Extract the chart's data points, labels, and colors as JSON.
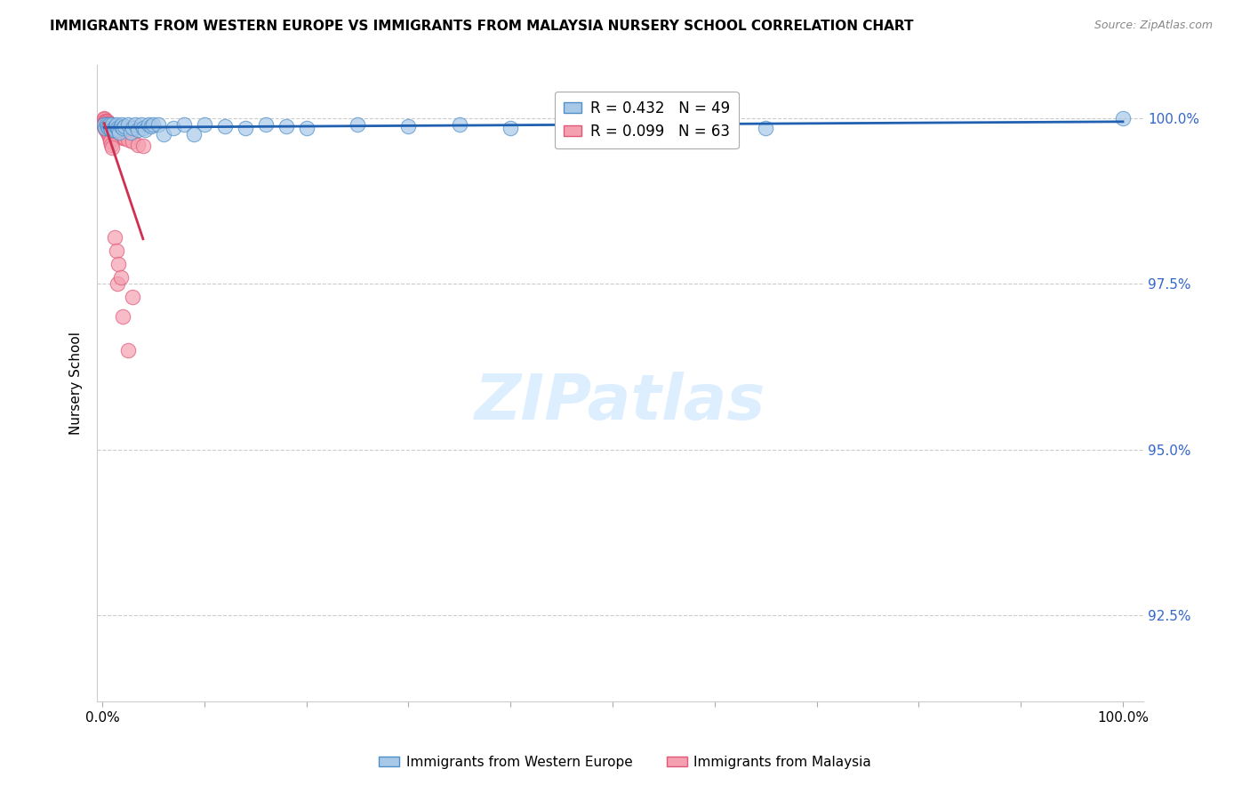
{
  "title": "IMMIGRANTS FROM WESTERN EUROPE VS IMMIGRANTS FROM MALAYSIA NURSERY SCHOOL CORRELATION CHART",
  "source": "Source: ZipAtlas.com",
  "ylabel": "Nursery School",
  "y_tick_labels": [
    "92.5%",
    "95.0%",
    "97.5%",
    "100.0%"
  ],
  "y_ticks": [
    0.925,
    0.95,
    0.975,
    1.0
  ],
  "y_min": 0.912,
  "y_max": 1.008,
  "x_min": -0.005,
  "x_max": 1.02,
  "blue_R": 0.432,
  "blue_N": 49,
  "pink_R": 0.099,
  "pink_N": 63,
  "blue_color": "#a8c8e8",
  "pink_color": "#f4a0b0",
  "blue_edge_color": "#5090c8",
  "pink_edge_color": "#e05878",
  "blue_line_color": "#2060b0",
  "pink_line_color": "#d03050",
  "watermark_color": "#ddeeff",
  "legend_label_blue": "Immigrants from Western Europe",
  "legend_label_pink": "Immigrants from Malaysia",
  "blue_scatter_x": [
    0.002,
    0.003,
    0.004,
    0.005,
    0.006,
    0.007,
    0.008,
    0.009,
    0.01,
    0.011,
    0.012,
    0.013,
    0.014,
    0.015,
    0.016,
    0.017,
    0.018,
    0.019,
    0.02,
    0.022,
    0.025,
    0.028,
    0.03,
    0.032,
    0.035,
    0.038,
    0.04,
    0.042,
    0.045,
    0.048,
    0.05,
    0.055,
    0.06,
    0.07,
    0.08,
    0.09,
    0.1,
    0.12,
    0.14,
    0.16,
    0.18,
    0.2,
    0.25,
    0.3,
    0.35,
    0.4,
    0.5,
    0.65,
    1.0
  ],
  "blue_scatter_y": [
    0.999,
    0.9985,
    0.999,
    0.9988,
    0.9985,
    0.999,
    0.9985,
    0.9982,
    0.999,
    0.9985,
    0.9982,
    0.9988,
    0.999,
    0.9985,
    0.9982,
    0.9978,
    0.9988,
    0.999,
    0.9985,
    0.9988,
    0.999,
    0.9978,
    0.9985,
    0.999,
    0.9982,
    0.999,
    0.9985,
    0.9982,
    0.999,
    0.9988,
    0.999,
    0.999,
    0.9975,
    0.9985,
    0.999,
    0.9975,
    0.999,
    0.9988,
    0.9985,
    0.999,
    0.9988,
    0.9985,
    0.999,
    0.9988,
    0.999,
    0.9985,
    0.999,
    0.9985,
    1.0
  ],
  "pink_scatter_x": [
    0.002,
    0.002,
    0.003,
    0.003,
    0.003,
    0.004,
    0.004,
    0.004,
    0.005,
    0.005,
    0.005,
    0.006,
    0.006,
    0.006,
    0.007,
    0.007,
    0.007,
    0.008,
    0.008,
    0.008,
    0.009,
    0.009,
    0.01,
    0.01,
    0.01,
    0.011,
    0.011,
    0.012,
    0.012,
    0.013,
    0.014,
    0.015,
    0.016,
    0.018,
    0.02,
    0.022,
    0.025,
    0.03,
    0.035,
    0.04,
    0.002,
    0.002,
    0.003,
    0.003,
    0.004,
    0.004,
    0.005,
    0.005,
    0.006,
    0.007,
    0.007,
    0.008,
    0.008,
    0.009,
    0.01,
    0.015,
    0.02,
    0.025,
    0.012,
    0.014,
    0.016,
    0.018,
    0.03
  ],
  "pink_scatter_y": [
    1.0,
    0.9998,
    0.9996,
    0.9994,
    0.9992,
    0.9995,
    0.9992,
    0.999,
    0.9994,
    0.9992,
    0.9988,
    0.9992,
    0.999,
    0.9988,
    0.9992,
    0.9988,
    0.9985,
    0.9988,
    0.9985,
    0.9982,
    0.9988,
    0.9985,
    0.9985,
    0.9982,
    0.998,
    0.9982,
    0.998,
    0.9982,
    0.9978,
    0.9978,
    0.9975,
    0.9978,
    0.9972,
    0.9975,
    0.997,
    0.997,
    0.9968,
    0.9965,
    0.996,
    0.9958,
    0.999,
    0.9988,
    0.9986,
    0.9984,
    0.9983,
    0.9981,
    0.998,
    0.9978,
    0.9976,
    0.9975,
    0.9972,
    0.9968,
    0.9965,
    0.996,
    0.9955,
    0.975,
    0.97,
    0.965,
    0.982,
    0.98,
    0.978,
    0.976,
    0.973
  ]
}
